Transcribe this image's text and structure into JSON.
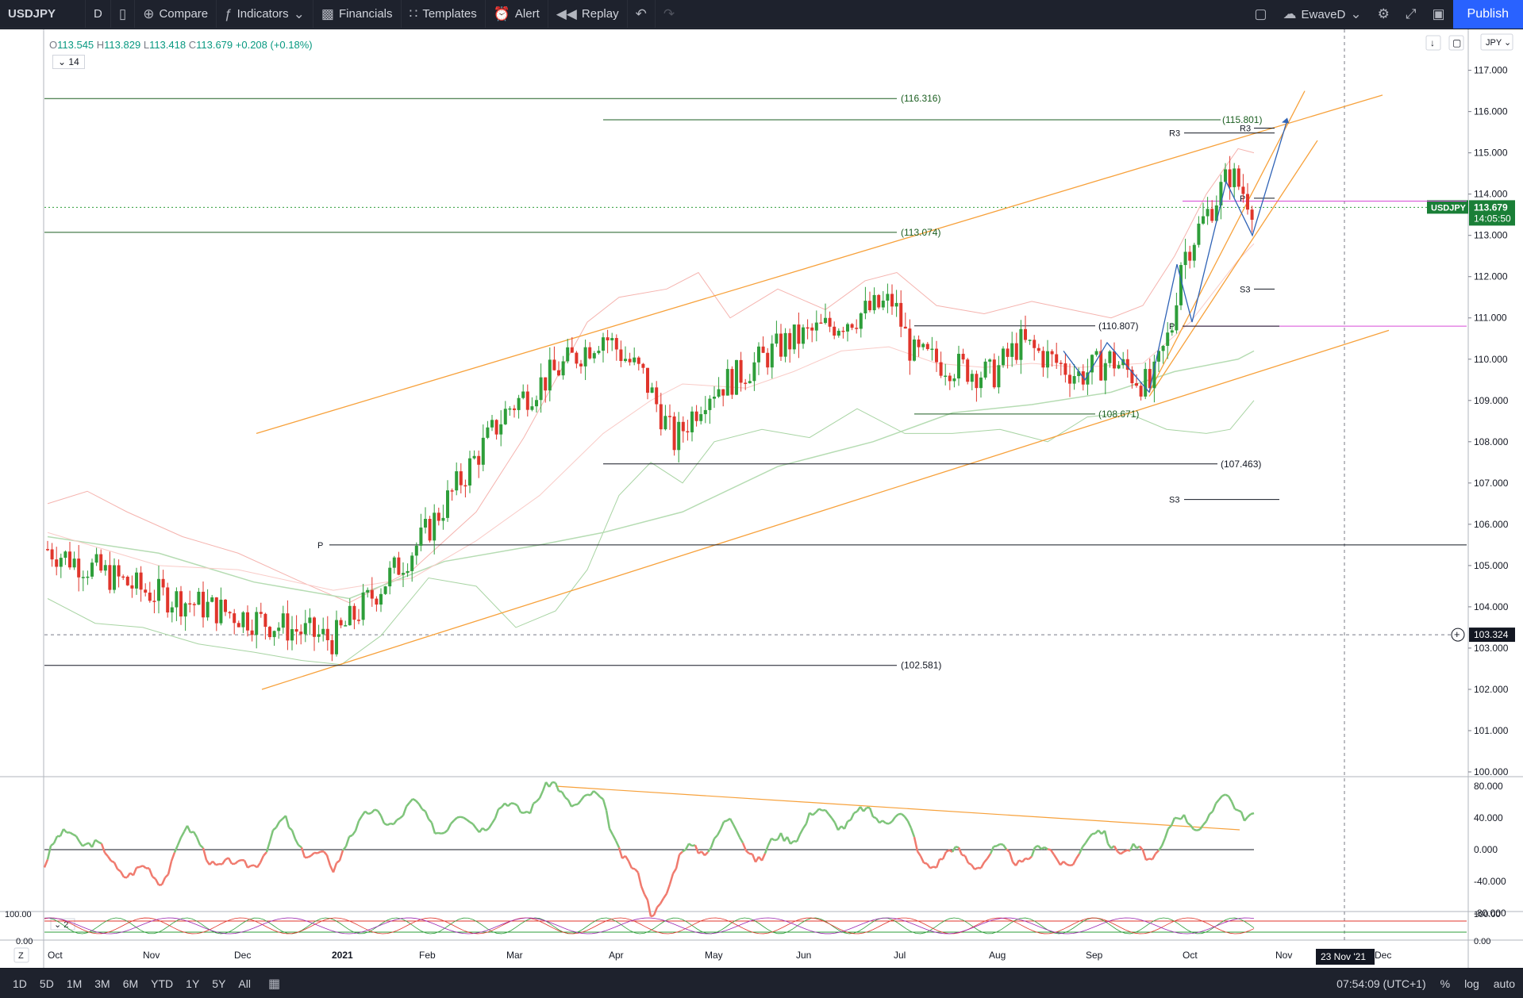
{
  "toolbar": {
    "symbol": "USDJPY",
    "interval": "D",
    "compare": "Compare",
    "indicators": "Indicators",
    "financials": "Financials",
    "templates": "Templates",
    "alert": "Alert",
    "replay": "Replay",
    "layout_name": "EwaveD",
    "publish": "Publish"
  },
  "legend": {
    "o_label": "O",
    "o": "113.545",
    "h_label": "H",
    "h": "113.829",
    "l_label": "L",
    "l": "113.418",
    "c_label": "C",
    "c": "113.679",
    "chg": "+0.208 (+0.18%)",
    "ind_length": "14",
    "osc_label": "2"
  },
  "currency": "JPY",
  "price_axis": [
    "117.000",
    "116.000",
    "115.000",
    "114.000",
    "113.000",
    "112.000",
    "111.000",
    "110.000",
    "109.000",
    "108.000",
    "107.000",
    "106.000",
    "105.000",
    "104.000",
    "103.000",
    "102.000",
    "101.000",
    "100.000"
  ],
  "osc_axis": [
    "80.000",
    "40.000",
    "0.000",
    "-40.000",
    "-80.000"
  ],
  "osc2_axis": [
    "100.00",
    "0.00"
  ],
  "osc2_axis_right": [
    "100.00",
    "0.00"
  ],
  "time_axis": [
    "Oct",
    "Nov",
    "Dec",
    "2021",
    "Feb",
    "Mar",
    "Apr",
    "May",
    "Jun",
    "Jul",
    "Aug",
    "Sep",
    "Oct",
    "Nov",
    "Dec"
  ],
  "crosshair_date": "23 Nov '21",
  "symbol_tag": "USDJPY",
  "last_price": "113.679",
  "countdown": "14:05:50",
  "crosshair_price": "103.324",
  "levels": [
    "(116.316)",
    "(115.801)",
    "(113.074)",
    "(110.807)",
    "(108.671)",
    "(107.463)",
    "(102.581)"
  ],
  "pivot_labels": {
    "r3a": "R3",
    "r3b": "R3",
    "p1": "P",
    "p2": "P",
    "p3": "P",
    "s3a": "S3",
    "s3b": "S3"
  },
  "timeframes": [
    "1D",
    "5D",
    "1M",
    "3M",
    "6M",
    "YTD",
    "1Y",
    "5Y",
    "All"
  ],
  "bottom_right": {
    "time": "07:54:09 (UTC+1)",
    "pct": "%",
    "log": "log",
    "auto": "auto"
  },
  "colors": {
    "up": "#2e9e3a",
    "down": "#e0352b",
    "channel": "#f7a13b",
    "level": "#1b5e20",
    "magenta": "#d64bd6",
    "osc_up": "#7ec47a",
    "osc_down": "#f07a6e",
    "wave": "#2f63b6"
  },
  "chart_data": {
    "type": "candlestick",
    "symbol": "USDJPY",
    "interval": "D",
    "y_range": [
      100,
      117.3
    ],
    "ohlc_last": {
      "open": 113.545,
      "high": 113.829,
      "low": 113.418,
      "close": 113.679
    },
    "price_path": [
      [
        "Oct",
        105.4
      ],
      [
        "Nov",
        104.4
      ],
      [
        "Dec",
        103.8
      ],
      [
        "Jan",
        103.2
      ],
      [
        "Feb",
        105.6
      ],
      [
        "Mar",
        108.8
      ],
      [
        "Apr",
        110.6
      ],
      [
        "Apr",
        109.6
      ],
      [
        "May",
        108.0
      ],
      [
        "May",
        109.2
      ],
      [
        "Jun",
        109.6
      ],
      [
        "Jun",
        110.4
      ],
      [
        "Jul",
        111.4
      ],
      [
        "Jul",
        110.1
      ],
      [
        "Aug",
        109.6
      ],
      [
        "Aug",
        110.4
      ],
      [
        "Sep",
        109.6
      ],
      [
        "Sep",
        110.0
      ],
      [
        "Sep",
        109.3
      ],
      [
        "Oct",
        111.0
      ],
      [
        "Oct",
        112.3
      ],
      [
        "Oct",
        114.5
      ],
      [
        "Oct",
        113.7
      ]
    ],
    "horizontal_levels": [
      116.316,
      115.801,
      113.074,
      110.807,
      108.671,
      107.463,
      102.581
    ],
    "oscillator": {
      "range": [
        -80,
        80
      ],
      "zero": 0
    }
  }
}
